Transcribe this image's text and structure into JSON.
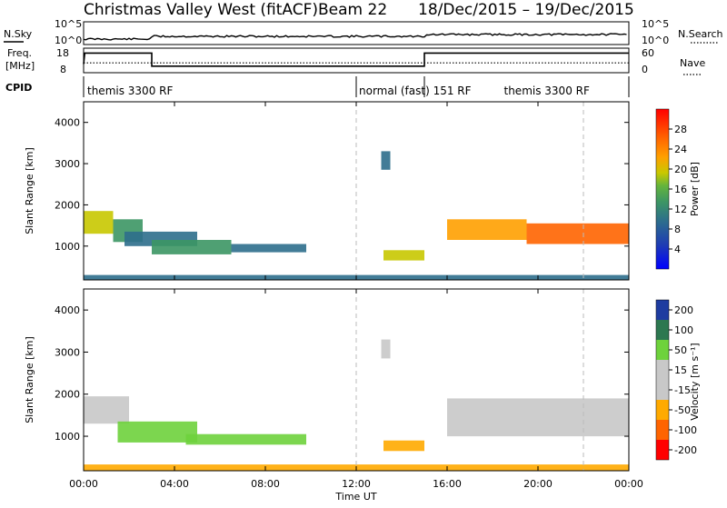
{
  "header": {
    "title_station": "Christmas Valley West (fitACF)",
    "title_beam": "Beam 22",
    "title_dates": "18/Dec/2015 – 19/Dec/2015"
  },
  "status_panel": {
    "nsky_label": "N.Sky",
    "nsky_ticks": [
      "10^5",
      "10^0"
    ],
    "nsearch_label": "N.Search",
    "nsearch_ticks": [
      "10^5",
      "10^0"
    ],
    "freq_label": "Freq.",
    "freq_unit": "[MHz]",
    "freq_ticks": [
      "18",
      "8"
    ],
    "nave_label": "Nave",
    "nave_ticks": [
      "60",
      "0"
    ],
    "cpid_label": "CPID",
    "modes": [
      {
        "label": "themis 3300 RF",
        "start_hour": 0,
        "end_hour": 12
      },
      {
        "label": "normal (fast) 151 RF",
        "start_hour": 12,
        "end_hour": 15
      },
      {
        "label": "themis 3300 RF",
        "start_hour": 15,
        "end_hour": 24
      }
    ],
    "freq_series_mhz": [
      [
        0,
        12
      ],
      [
        0.05,
        17
      ],
      [
        3,
        17
      ],
      [
        3,
        11
      ],
      [
        15,
        11
      ],
      [
        15,
        17
      ],
      [
        24,
        17
      ]
    ],
    "nave_series": [
      [
        0,
        27
      ],
      [
        24,
        27
      ]
    ]
  },
  "x_axis": {
    "label": "Time UT",
    "tick_labels": [
      "00:00",
      "04:00",
      "08:00",
      "12:00",
      "16:00",
      "20:00",
      "00:00"
    ],
    "range_hours": [
      0,
      24
    ]
  },
  "chart_data": [
    {
      "type": "heatmap",
      "parameter": "Power",
      "ylabel": "Slant Range [km]",
      "ylim": [
        180,
        4500
      ],
      "y_ticks": [
        1000,
        2000,
        3000,
        4000
      ],
      "colorbar_label": "Power [dB]",
      "colorbar_range": [
        0,
        32
      ],
      "colorbar_ticks": [
        "28",
        "24",
        "20",
        "16",
        "12",
        "8",
        "4"
      ],
      "regions": [
        {
          "t0": 0.0,
          "t1": 1.3,
          "r0": 1300,
          "r1": 1850,
          "value": 20
        },
        {
          "t0": 1.3,
          "t1": 2.6,
          "r0": 1100,
          "r1": 1650,
          "value": 14
        },
        {
          "t0": 1.8,
          "t1": 5.0,
          "r0": 1000,
          "r1": 1350,
          "value": 10
        },
        {
          "t0": 3.0,
          "t1": 6.5,
          "r0": 800,
          "r1": 1150,
          "value": 11
        },
        {
          "t0": 6.5,
          "t1": 9.8,
          "r0": 850,
          "r1": 1050,
          "value": 8
        },
        {
          "t0": 13.2,
          "t1": 15.0,
          "r0": 650,
          "r1": 900,
          "value": 18
        },
        {
          "t0": 16.0,
          "t1": 19.5,
          "r0": 1150,
          "r1": 1650,
          "value": 24
        },
        {
          "t0": 19.5,
          "t1": 24.0,
          "r0": 1050,
          "r1": 1550,
          "value": 27
        },
        {
          "t0": 13.1,
          "t1": 13.5,
          "r0": 2850,
          "r1": 3300,
          "value": 8
        },
        {
          "t0": 0.0,
          "t1": 24.0,
          "r0": 180,
          "r1": 300,
          "value": 9
        }
      ]
    },
    {
      "type": "heatmap",
      "parameter": "Velocity",
      "ylabel": "Slant Range [km]",
      "ylim": [
        180,
        4500
      ],
      "y_ticks": [
        1000,
        2000,
        3000,
        4000
      ],
      "colorbar_label": "Velocity [m s⁻¹]",
      "colorbar_ticks": [
        "200",
        "100",
        "50",
        "15",
        "-15",
        "-50",
        "-100",
        "-200"
      ],
      "regions": [
        {
          "t0": 0.0,
          "t1": 2.0,
          "r0": 1300,
          "r1": 1950,
          "value": 0
        },
        {
          "t0": 1.5,
          "t1": 5.0,
          "r0": 850,
          "r1": 1350,
          "value": 30
        },
        {
          "t0": 4.5,
          "t1": 9.8,
          "r0": 800,
          "r1": 1050,
          "value": 30
        },
        {
          "t0": 13.2,
          "t1": 15.0,
          "r0": 650,
          "r1": 900,
          "value": -20
        },
        {
          "t0": 16.0,
          "t1": 24.0,
          "r0": 1000,
          "r1": 1900,
          "value": 0
        },
        {
          "t0": 0.0,
          "t1": 24.0,
          "r0": 180,
          "r1": 330,
          "value": -40
        },
        {
          "t0": 13.1,
          "t1": 13.5,
          "r0": 2850,
          "r1": 3300,
          "value": 0
        }
      ]
    }
  ],
  "colors": {
    "power_scale": [
      "#0000ff",
      "#1e3cb4",
      "#2d6e8c",
      "#3c9664",
      "#64b43c",
      "#c8c800",
      "#ffa000",
      "#ff6400",
      "#ff0000"
    ],
    "velocity_scale": [
      "#1e3ca0",
      "#2d7850",
      "#6ed23c",
      "#c8c8c8",
      "#c8c8c8",
      "#ffaa00",
      "#ff6400",
      "#ff0000"
    ]
  }
}
